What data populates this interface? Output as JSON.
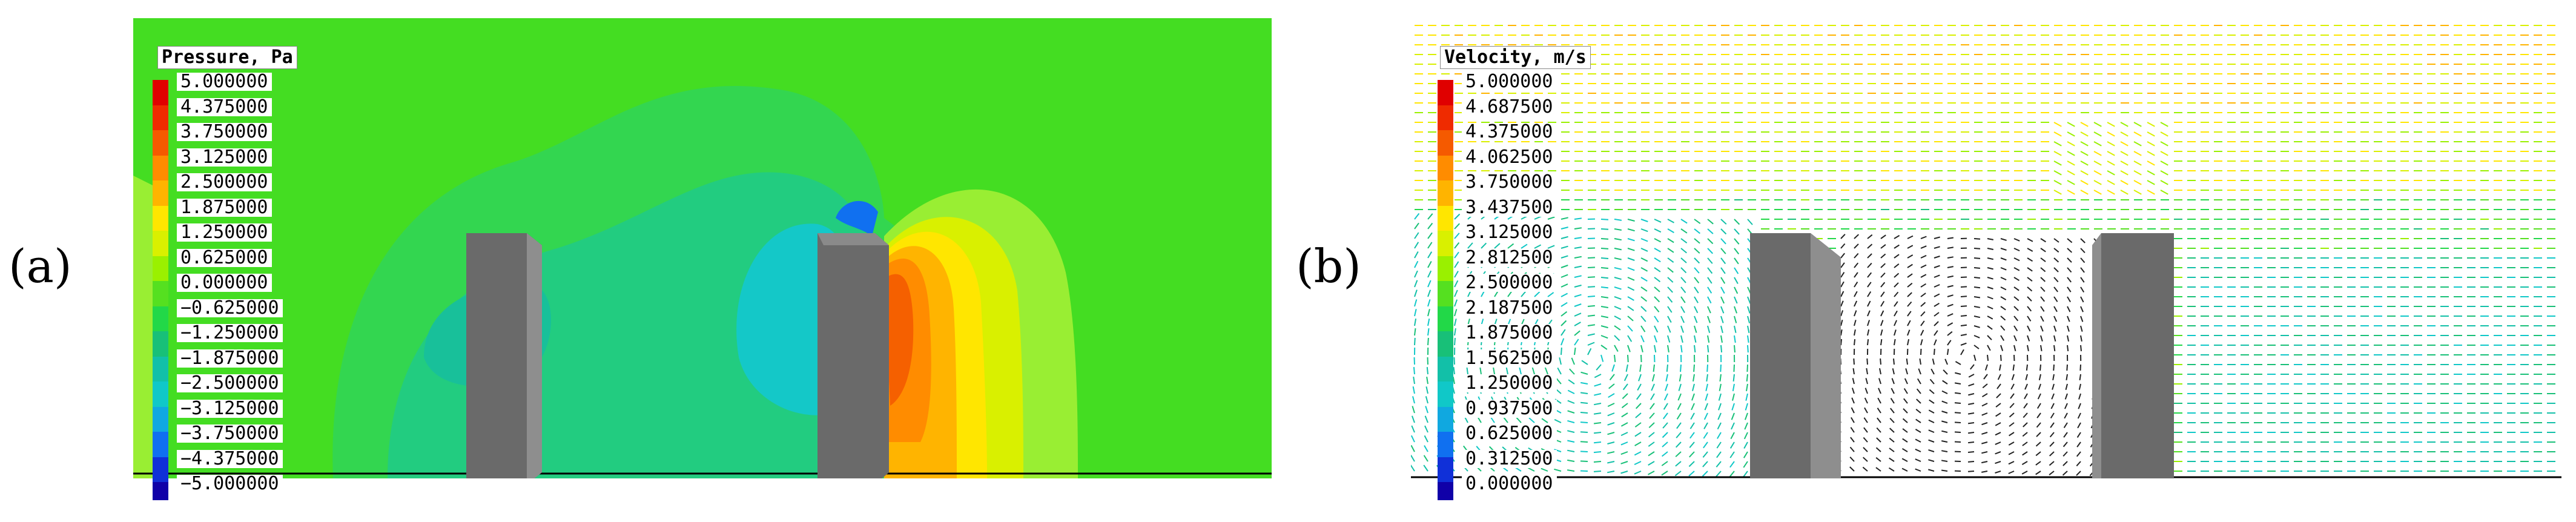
{
  "figure": {
    "panel_a": {
      "label": "(a)",
      "legend_title": "Pressure, Pa",
      "ticks": [
        "5.000000",
        "4.375000",
        "3.750000",
        "3.125000",
        "2.500000",
        "1.875000",
        "1.250000",
        "0.625000",
        "0.000000",
        "−0.625000",
        "−1.250000",
        "−1.875000",
        "−2.500000",
        "−3.125000",
        "−3.750000",
        "−4.375000",
        "−5.000000"
      ],
      "colors": [
        "#e00000",
        "#ef2b00",
        "#f55a00",
        "#ff8c00",
        "#ffb400",
        "#ffe600",
        "#d9f000",
        "#9af000",
        "#55e020",
        "#22d848",
        "#18c078",
        "#12c0a8",
        "#10c8c8",
        "#10a8e0",
        "#1070f0",
        "#1030d8",
        "#1000a8"
      ]
    },
    "panel_b": {
      "label": "(b)",
      "legend_title": "Velocity, m/s",
      "ticks": [
        "5.000000",
        "4.687500",
        "4.375000",
        "4.062500",
        "3.750000",
        "3.437500",
        "3.125000",
        "2.812500",
        "2.500000",
        "2.187500",
        "1.875000",
        "1.562500",
        "1.250000",
        "0.937500",
        "0.625000",
        "0.312500",
        "0.000000"
      ],
      "colors": [
        "#e00000",
        "#ef2b00",
        "#f55a00",
        "#ff8c00",
        "#ffb400",
        "#ffe600",
        "#d9f000",
        "#9af000",
        "#55e020",
        "#22d848",
        "#18c078",
        "#12c0a8",
        "#10c8c8",
        "#10a8e0",
        "#1070f0",
        "#1030d8",
        "#1000a8"
      ]
    }
  }
}
